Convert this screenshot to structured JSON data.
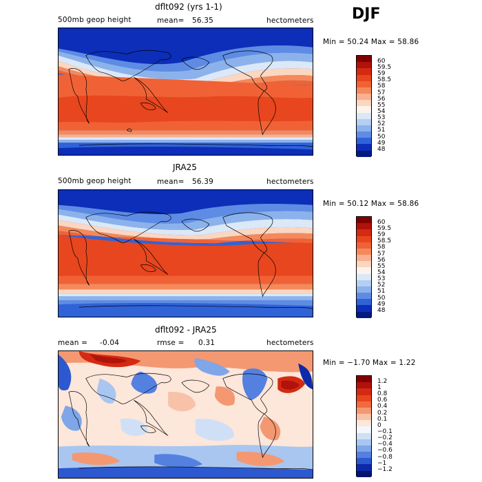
{
  "season": "DJF",
  "panels": [
    {
      "title": "dflt092 (yrs 1-1)",
      "left_label": "500mb geop height",
      "center_label": "mean=",
      "center_value": "56.35",
      "right_label": "hectometers",
      "minmax": "Min =  50.24 Max =  58.86",
      "levels": [
        "60",
        "59.5",
        "59",
        "58.5",
        "58",
        "57",
        "56",
        "55",
        "54",
        "53",
        "52",
        "51",
        "50",
        "49",
        "48"
      ]
    },
    {
      "title": "JRA25",
      "left_label": "500mb geop height",
      "center_label": "mean=",
      "center_value": "56.39",
      "right_label": "hectometers",
      "minmax": "Min =  50.12 Max =  58.86",
      "levels": [
        "60",
        "59.5",
        "59",
        "58.5",
        "58",
        "57",
        "56",
        "55",
        "54",
        "53",
        "52",
        "51",
        "50",
        "49",
        "48"
      ]
    },
    {
      "title": "dflt092 - JRA25",
      "left_label": "mean =",
      "left_value": "-0.04",
      "center_label": "rmse =",
      "center_value": "0.31",
      "right_label": "hectometers",
      "minmax": "Min = −1.70 Max =   1.22",
      "levels": [
        "1.2",
        "1",
        "0.8",
        "0.6",
        "0.4",
        "0.2",
        "0.1",
        "0",
        "−0.1",
        "−0.2",
        "−0.4",
        "−0.6",
        "−0.8",
        "−1",
        "−1.2"
      ]
    }
  ],
  "colors": {
    "height_scale": [
      "#800000",
      "#b0120c",
      "#d42a12",
      "#e8461e",
      "#f06236",
      "#f48a5c",
      "#f8b090",
      "#fbd6c0",
      "#fdf3ec",
      "#dbe8f8",
      "#b4cff2",
      "#8cb2ec",
      "#5e8ce4",
      "#3062d8",
      "#0c2eb8",
      "#001a80"
    ],
    "diff_scale": [
      "#800000",
      "#b0120c",
      "#d42a12",
      "#e8461e",
      "#f06a40",
      "#f49872",
      "#f8c2a8",
      "#fde6da",
      "#f4f6fb",
      "#cfe0f6",
      "#a8c6f0",
      "#7ea6e8",
      "#5480e0",
      "#2c58d0",
      "#0c2aa8",
      "#001470"
    ]
  }
}
